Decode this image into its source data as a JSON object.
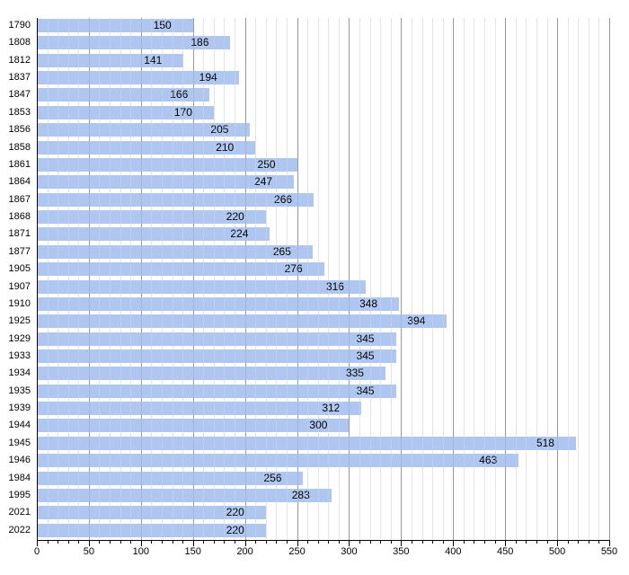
{
  "chart_data": {
    "type": "bar",
    "orientation": "horizontal",
    "title": "",
    "xlabel": "",
    "ylabel": "",
    "categories": [
      "1790",
      "1808",
      "1812",
      "1837",
      "1847",
      "1853",
      "1856",
      "1858",
      "1861",
      "1864",
      "1867",
      "1868",
      "1871",
      "1877",
      "1905",
      "1907",
      "1910",
      "1925",
      "1929",
      "1933",
      "1934",
      "1935",
      "1939",
      "1944",
      "1945",
      "1946",
      "1984",
      "1995",
      "2021",
      "2022"
    ],
    "values": [
      150,
      186,
      141,
      194,
      166,
      170,
      205,
      210,
      250,
      247,
      266,
      220,
      224,
      265,
      276,
      316,
      348,
      394,
      345,
      345,
      335,
      345,
      312,
      300,
      518,
      463,
      256,
      283,
      220,
      220
    ],
    "xlim": [
      0,
      550
    ],
    "x_tick_labels": [
      0,
      50,
      100,
      150,
      200,
      250,
      300,
      350,
      400,
      450,
      500,
      550
    ],
    "major_tick_step": 50,
    "minor_tick_step": 10,
    "grid": "on",
    "legend": null,
    "value_labels": "inside-right",
    "colors": {
      "bar": "#aec6f0",
      "major_grid": "#999999",
      "minor_grid": "#e3e3e3",
      "axis": "#000000",
      "label": "#000000",
      "background": "#ffffff"
    }
  }
}
